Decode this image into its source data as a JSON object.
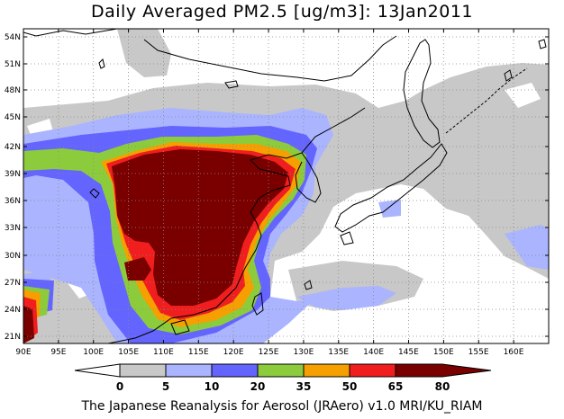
{
  "title": "Daily Averaged PM2.5 [ug/m3]: 13Jan2011",
  "credit": "The Japanese Reanalysis for Aerosol (JRAero) v1.0 MRI/KU_RIAM",
  "lon_ticks": [
    "90E",
    "95E",
    "100E",
    "105E",
    "110E",
    "115E",
    "120E",
    "125E",
    "130E",
    "135E",
    "140E",
    "145E",
    "150E",
    "155E",
    "160E"
  ],
  "lat_ticks": [
    "54N",
    "51N",
    "48N",
    "45N",
    "42N",
    "39N",
    "36N",
    "33N",
    "30N",
    "27N",
    "24N",
    "21N"
  ],
  "colorbar": {
    "labels": [
      "0",
      "5",
      "10",
      "20",
      "35",
      "50",
      "65",
      "80"
    ],
    "colors": [
      "#ffffff",
      "#c8c8c8",
      "#aab4ff",
      "#6464ff",
      "#8ccc3c",
      "#f5a000",
      "#f01e1e",
      "#7a0000"
    ]
  }
}
